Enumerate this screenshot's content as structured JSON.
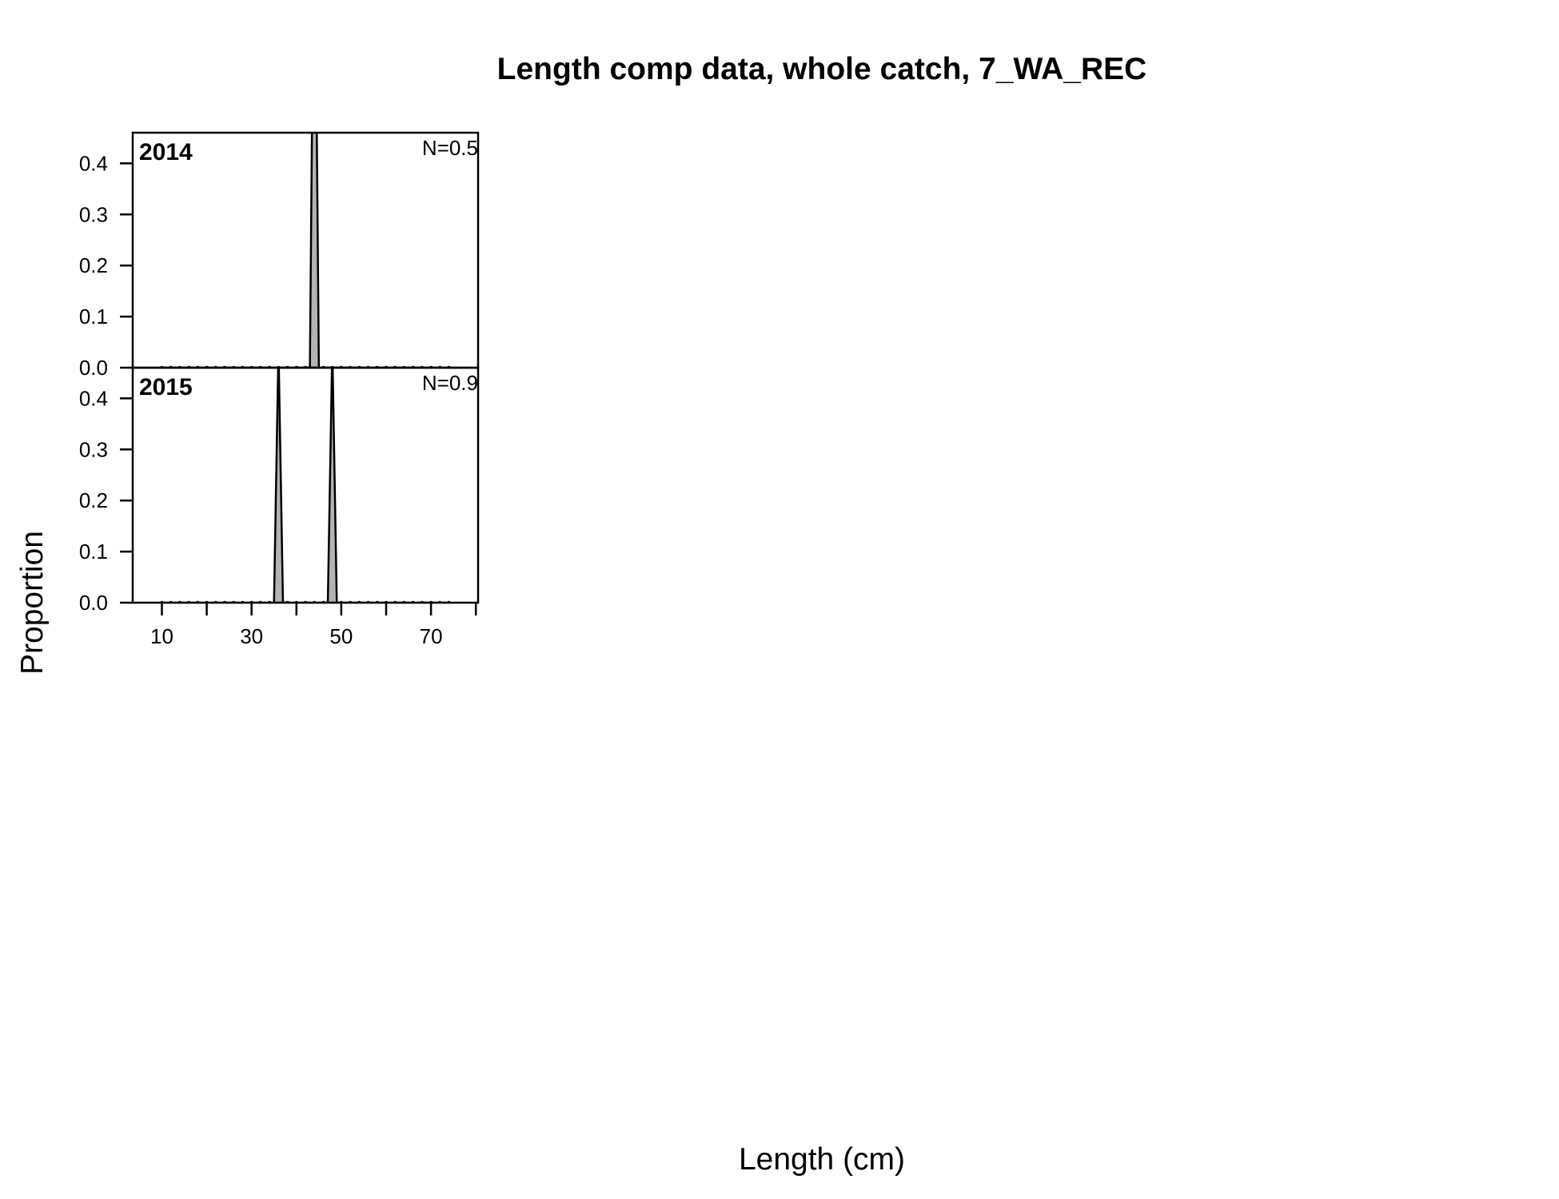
{
  "chart_data": {
    "type": "area",
    "title": "Length comp data, whole catch, 7_WA_REC",
    "xlabel": "Length (cm)",
    "ylabel": "Proportion",
    "xlim": [
      3.5,
      80.5
    ],
    "ylim": [
      0,
      0.46
    ],
    "x_ticks": [
      10,
      20,
      30,
      40,
      50,
      60,
      70,
      80
    ],
    "x_tick_labels": [
      "10",
      "",
      "30",
      "",
      "50",
      "",
      "70",
      ""
    ],
    "y_ticks": [
      0.0,
      0.1,
      0.2,
      0.3,
      0.4
    ],
    "y_tick_labels": [
      "0.0",
      "0.1",
      "0.2",
      "0.3",
      "0.4"
    ],
    "bin_width": 2,
    "panels": [
      {
        "year": "2014",
        "n_label": "N=0.5",
        "bins": [
          10,
          12,
          14,
          16,
          18,
          20,
          22,
          24,
          26,
          28,
          30,
          32,
          34,
          36,
          38,
          40,
          42,
          44,
          46,
          48,
          50,
          52,
          54,
          56,
          58,
          60,
          62,
          64,
          66,
          68,
          70,
          72,
          74
        ],
        "values": [
          0,
          0,
          0,
          0,
          0,
          0,
          0,
          0,
          0,
          0,
          0,
          0,
          0,
          0,
          0,
          0,
          0,
          1.0,
          0,
          0,
          0,
          0,
          0,
          0,
          0,
          0,
          0,
          0,
          0,
          0,
          0,
          0,
          0
        ]
      },
      {
        "year": "2015",
        "n_label": "N=0.9",
        "bins": [
          10,
          12,
          14,
          16,
          18,
          20,
          22,
          24,
          26,
          28,
          30,
          32,
          34,
          36,
          38,
          40,
          42,
          44,
          46,
          48,
          50,
          52,
          54,
          56,
          58,
          60,
          62,
          64,
          66,
          68,
          70,
          72,
          74
        ],
        "values": [
          0,
          0,
          0,
          0,
          0,
          0,
          0,
          0,
          0,
          0,
          0,
          0,
          0,
          0.5,
          0,
          0,
          0,
          0,
          0,
          0.5,
          0,
          0,
          0,
          0,
          0,
          0,
          0,
          0,
          0,
          0,
          0,
          0,
          0
        ]
      }
    ]
  },
  "colors": {
    "fill": "#b3b3b3",
    "stroke": "#000000",
    "background": "#ffffff"
  }
}
